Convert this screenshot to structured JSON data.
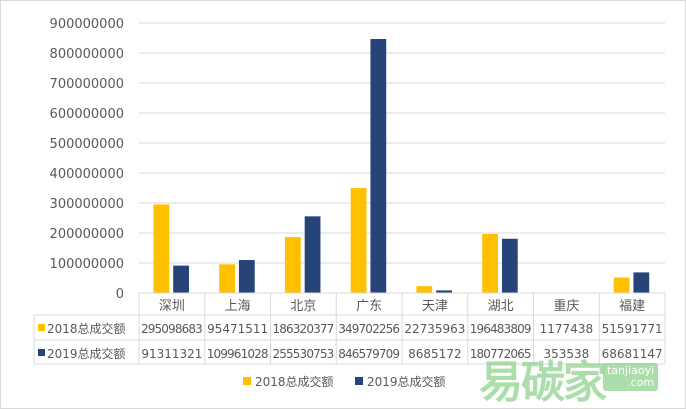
{
  "chart_data": {
    "type": "bar",
    "categories": [
      "深圳",
      "上海",
      "北京",
      "广东",
      "天津",
      "湖北",
      "重庆",
      "福建"
    ],
    "series": [
      {
        "name": "2018总成交额",
        "color": "#FFC000",
        "values": [
          295098683,
          95471511,
          186320377,
          349702256,
          22735963,
          196483809,
          1177438,
          51591771
        ]
      },
      {
        "name": "2019总成交额",
        "color": "#264478",
        "values": [
          91311321,
          109961028,
          255530753,
          846579709,
          8685172,
          180772065,
          353538,
          68681147
        ]
      }
    ],
    "ylim": [
      0,
      900000000
    ],
    "yticks": [
      "0",
      "100000000",
      "200000000",
      "300000000",
      "400000000",
      "500000000",
      "600000000",
      "700000000",
      "800000000",
      "900000000"
    ],
    "grid": true,
    "data_table": true,
    "legend": "bottom"
  },
  "watermark": {
    "main": "易碳家",
    "sub1": "tanjiaoyi",
    ".com": ".com"
  }
}
